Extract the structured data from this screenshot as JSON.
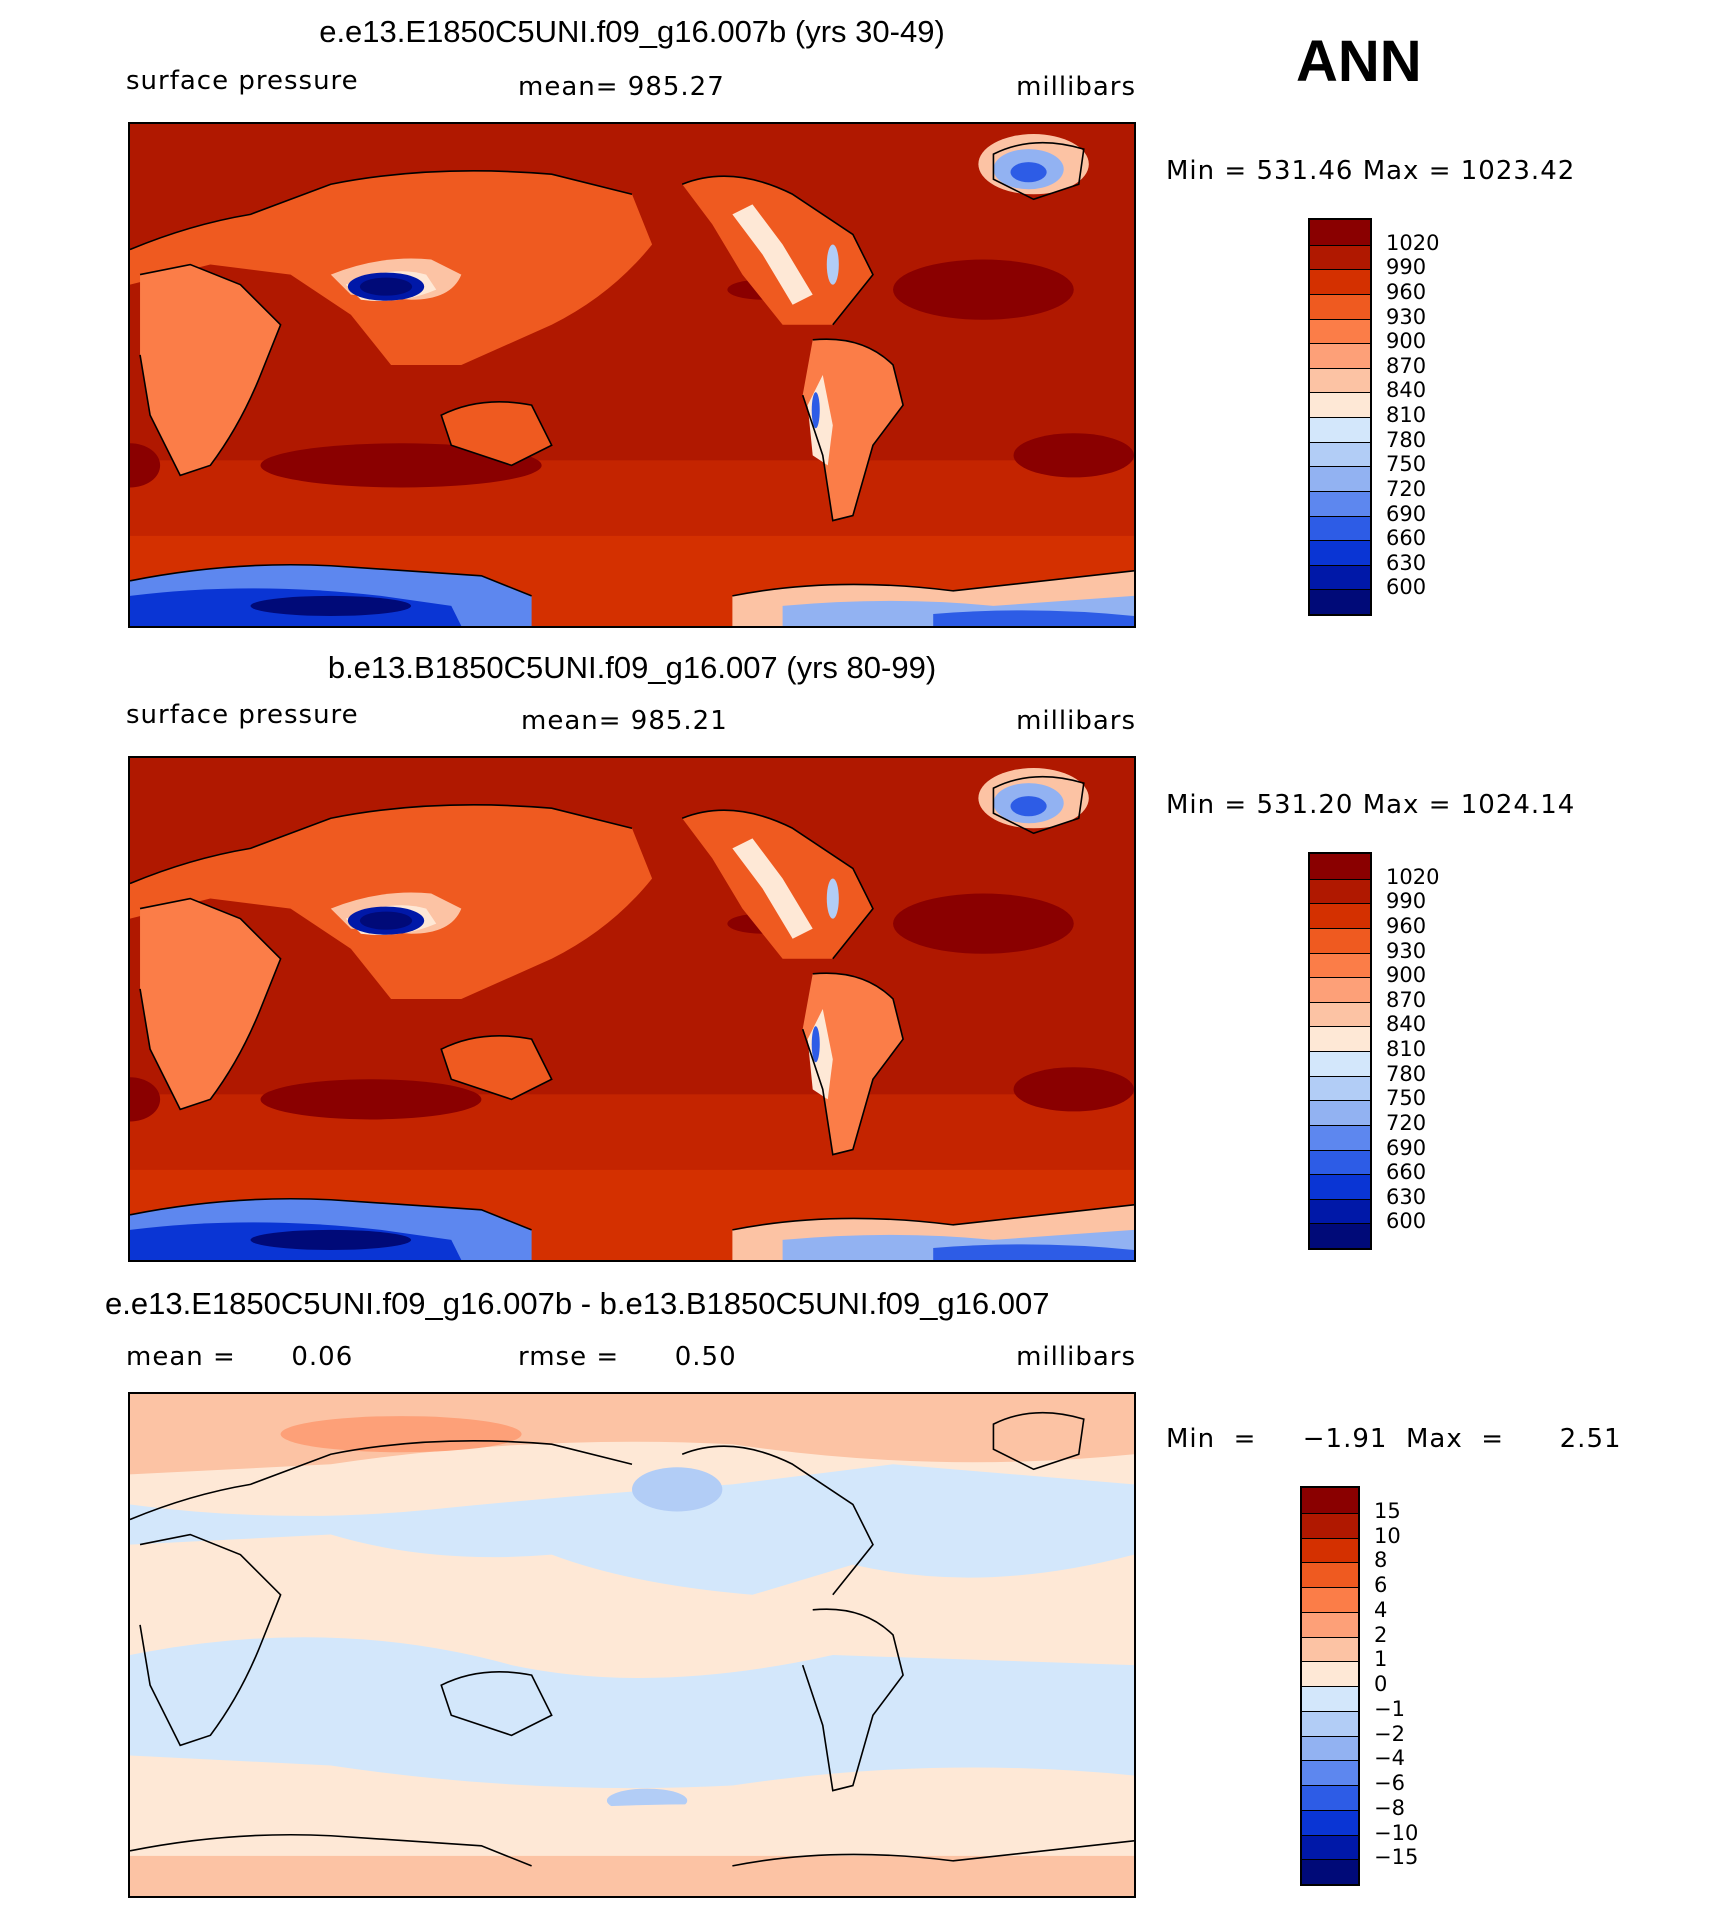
{
  "season": "ANN",
  "panels": [
    {
      "title": "e.e13.E1850C5UNI.f09_g16.007b (yrs 30-49)",
      "variable": "surface pressure",
      "stat_text": "mean=  985.27",
      "units": "millibars",
      "minmax": "Min  =  531.46  Max  =  1023.42",
      "field_type": "model"
    },
    {
      "title": "b.e13.B1850C5UNI.f09_g16.007 (yrs 80-99)",
      "variable": "surface pressure",
      "stat_text": "mean=  985.21",
      "units": "millibars",
      "minmax": "Min  =  531.20  Max  =  1024.14",
      "field_type": "model"
    },
    {
      "title": "e.e13.E1850C5UNI.f09_g16.007b - b.e13.B1850C5UNI.f09_g16.007",
      "variable": "mean =      0.06",
      "stat_text": "rmse =      0.50",
      "units": "millibars",
      "minmax": "Min  =     −1.91  Max  =      2.51",
      "field_type": "difference"
    }
  ],
  "colorbars": {
    "model": {
      "labels": [
        "1020",
        "990",
        "960",
        "930",
        "900",
        "870",
        "840",
        "810",
        "780",
        "750",
        "720",
        "690",
        "660",
        "630",
        "600"
      ],
      "colors": [
        "#8a0000",
        "#b01800",
        "#d43000",
        "#ef5a20",
        "#fb7d48",
        "#fda078",
        "#fcc3a4",
        "#fee8d6",
        "#d3e7fb",
        "#b2cdf6",
        "#92b2f2",
        "#5d87ef",
        "#2d5ce6",
        "#0a35d4",
        "#0018a8",
        "#000a78"
      ]
    },
    "difference": {
      "labels": [
        "15",
        "10",
        "8",
        "6",
        "4",
        "2",
        "1",
        "0",
        "−1",
        "−2",
        "−4",
        "−6",
        "−8",
        "−10",
        "−15"
      ],
      "colors": [
        "#8a0000",
        "#b01800",
        "#d43000",
        "#ef5a20",
        "#fb7d48",
        "#fda078",
        "#fcc3a4",
        "#fee8d6",
        "#d3e7fb",
        "#b2cdf6",
        "#92b2f2",
        "#5d87ef",
        "#2d5ce6",
        "#0a35d4",
        "#0018a8",
        "#000a78"
      ]
    }
  },
  "chart_data": [
    {
      "type": "heatmap",
      "title": "e.e13.E1850C5UNI.f09_g16.007b (yrs 30-49)",
      "variable": "surface pressure",
      "units": "millibars",
      "mean": 985.27,
      "min": 531.46,
      "max": 1023.42,
      "contour_levels": [
        600,
        630,
        660,
        690,
        720,
        750,
        780,
        810,
        840,
        870,
        900,
        930,
        960,
        990,
        1020
      ]
    },
    {
      "type": "heatmap",
      "title": "b.e13.B1850C5UNI.f09_g16.007 (yrs 80-99)",
      "variable": "surface pressure",
      "units": "millibars",
      "mean": 985.21,
      "min": 531.2,
      "max": 1024.14,
      "contour_levels": [
        600,
        630,
        660,
        690,
        720,
        750,
        780,
        810,
        840,
        870,
        900,
        930,
        960,
        990,
        1020
      ]
    },
    {
      "type": "heatmap",
      "title": "e.e13.E1850C5UNI.f09_g16.007b - b.e13.B1850C5UNI.f09_g16.007",
      "units": "millibars",
      "mean": 0.06,
      "rmse": 0.5,
      "min": -1.91,
      "max": 2.51,
      "contour_levels": [
        -15,
        -10,
        -8,
        -6,
        -4,
        -2,
        -1,
        0,
        1,
        2,
        4,
        6,
        8,
        10,
        15
      ]
    }
  ]
}
